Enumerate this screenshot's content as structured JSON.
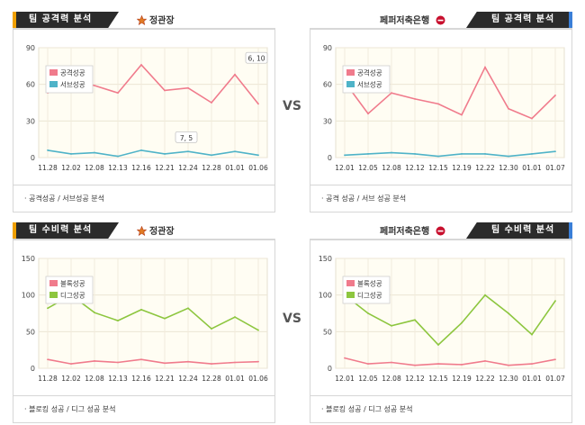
{
  "vs_label": "VS",
  "panels": [
    {
      "id": "p1",
      "tab_label": "팀 공격력 분석",
      "tab_side": "left",
      "team_name": "정관장",
      "team_emblem": "star-emblem",
      "footer": "· 공격성공 / 서브성공 분석",
      "chart": {
        "legend": [
          "공격성공",
          "서브성공"
        ],
        "colors": [
          "#f07b8c",
          "#4fb3c8"
        ],
        "categories": [
          "11.28",
          "12.02",
          "12.08",
          "12.13",
          "12.16",
          "12.21",
          "12.24",
          "12.28",
          "01.01",
          "01.06"
        ],
        "ylim": [
          0,
          90
        ],
        "yticks": [
          0,
          30,
          60,
          90
        ],
        "series": [
          {
            "name": "공격성공",
            "values": [
              53,
              63,
              59,
              53,
              76,
              55,
              57,
              45,
              68,
              44
            ]
          },
          {
            "name": "서브성공",
            "values": [
              6,
              3,
              4,
              1,
              6,
              3,
              5,
              2,
              5,
              2
            ]
          }
        ],
        "annotations": [
          {
            "text": "6, 10",
            "x_index": 9,
            "y": 81
          },
          {
            "text": "7, 5",
            "x_index": 6,
            "y": 16
          }
        ],
        "grid": true
      }
    },
    {
      "id": "p2",
      "tab_label": "팀 공격력 분석",
      "tab_side": "right",
      "team_name": "페퍼저축은행",
      "team_emblem": "pepper-emblem",
      "footer": "· 공격 성공 / 서브 성공 분석",
      "chart": {
        "legend": [
          "공격성공",
          "서브성공"
        ],
        "colors": [
          "#f07b8c",
          "#4fb3c8"
        ],
        "categories": [
          "12.01",
          "12.05",
          "12.08",
          "12.12",
          "12.15",
          "12.19",
          "12.22",
          "12.30",
          "01.01",
          "01.07"
        ],
        "ylim": [
          0,
          90
        ],
        "yticks": [
          0,
          30,
          60,
          90
        ],
        "series": [
          {
            "name": "공격성공",
            "values": [
              62,
              36,
              53,
              48,
              44,
              35,
              74,
              40,
              32,
              51
            ]
          },
          {
            "name": "서브성공",
            "values": [
              2,
              3,
              4,
              3,
              1,
              3,
              3,
              1,
              3,
              5
            ]
          }
        ],
        "annotations": [],
        "grid": true
      }
    },
    {
      "id": "p3",
      "tab_label": "팀 수비력 분석",
      "tab_side": "left",
      "team_name": "정관장",
      "team_emblem": "star-emblem",
      "footer": "· 블로킹 성공 / 디그 성공 분석",
      "chart": {
        "legend": [
          "블록성공",
          "디그성공"
        ],
        "colors": [
          "#f07b8c",
          "#8dc63f"
        ],
        "categories": [
          "11.28",
          "12.02",
          "12.08",
          "12.13",
          "12.16",
          "12.21",
          "12.24",
          "12.28",
          "01.01",
          "01.06"
        ],
        "ylim": [
          0,
          150
        ],
        "yticks": [
          0,
          50,
          100,
          150
        ],
        "series": [
          {
            "name": "블록성공",
            "values": [
              12,
              6,
              10,
              8,
              12,
              7,
              9,
              6,
              8,
              9
            ]
          },
          {
            "name": "디그성공",
            "values": [
              82,
              100,
              76,
              65,
              80,
              68,
              82,
              54,
              70,
              52
            ]
          }
        ],
        "annotations": [],
        "grid": true
      }
    },
    {
      "id": "p4",
      "tab_label": "팀 수비력 분석",
      "tab_side": "right",
      "team_name": "페퍼저축은행",
      "team_emblem": "pepper-emblem",
      "footer": "· 블로킹 성공 / 디그 성공 분석",
      "chart": {
        "legend": [
          "블록성공",
          "디그성공"
        ],
        "colors": [
          "#f07b8c",
          "#8dc63f"
        ],
        "categories": [
          "12.01",
          "12.05",
          "12.08",
          "12.12",
          "12.15",
          "12.19",
          "12.22",
          "12.30",
          "01.01",
          "01.07"
        ],
        "ylim": [
          0,
          150
        ],
        "yticks": [
          0,
          50,
          100,
          150
        ],
        "series": [
          {
            "name": "블록성공",
            "values": [
              14,
              6,
              8,
              4,
              6,
              5,
              10,
              4,
              6,
              12
            ]
          },
          {
            "name": "디그성공",
            "values": [
              100,
              75,
              58,
              66,
              32,
              62,
              100,
              75,
              46,
              92
            ]
          }
        ],
        "annotations": [],
        "grid": true
      }
    }
  ]
}
